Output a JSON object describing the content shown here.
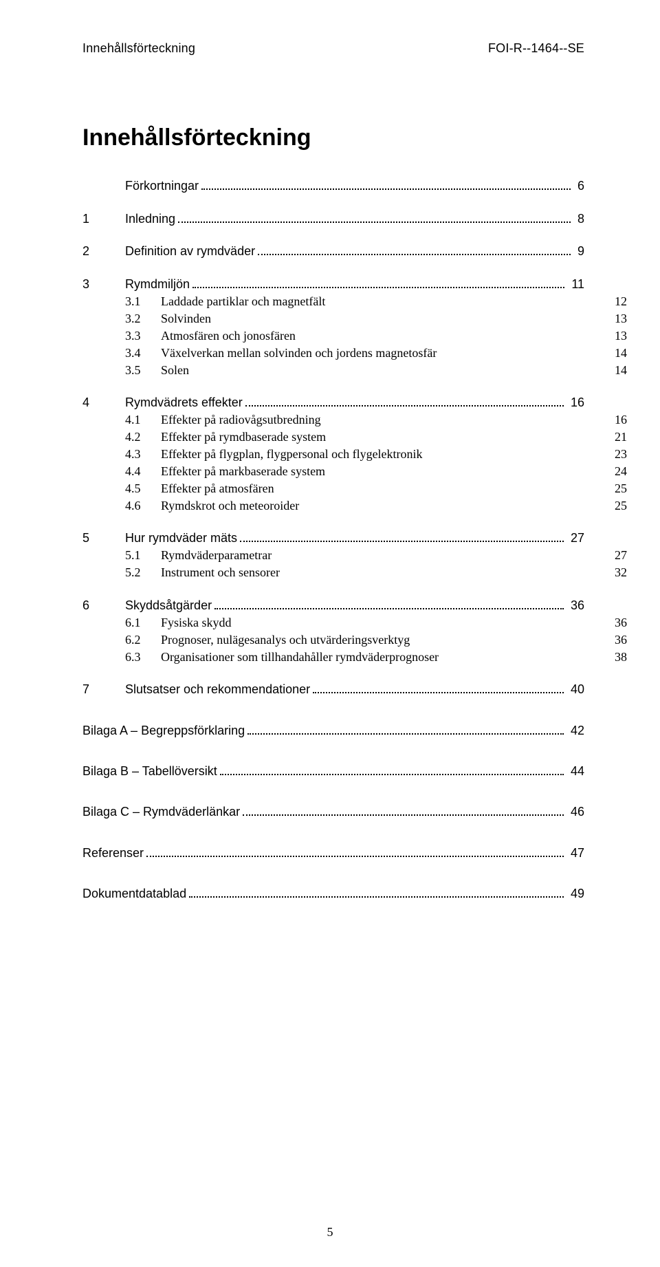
{
  "header": {
    "left": "Innehållsförteckning",
    "right": "FOI-R--1464--SE"
  },
  "title": "Innehållsförteckning",
  "page_number": "5",
  "toc": [
    {
      "type": "section",
      "num": "",
      "label": "Förkortningar",
      "page": "6",
      "dots": true
    },
    {
      "type": "section",
      "num": "1",
      "label": "Inledning",
      "page": "8",
      "dots": true
    },
    {
      "type": "section",
      "num": "2",
      "label": "Definition av rymdväder",
      "page": "9",
      "dots": true
    },
    {
      "type": "section",
      "num": "3",
      "label": "Rymdmiljön",
      "page": "11",
      "dots": true
    },
    {
      "type": "subsection",
      "num": "3.1",
      "label": "Laddade partiklar och magnetfält",
      "page": "12"
    },
    {
      "type": "subsection",
      "num": "3.2",
      "label": "Solvinden",
      "page": "13"
    },
    {
      "type": "subsection",
      "num": "3.3",
      "label": "Atmosfären och jonosfären",
      "page": "13"
    },
    {
      "type": "subsection",
      "num": "3.4",
      "label": "Växelverkan mellan solvinden och jordens magnetosfär",
      "page": "14"
    },
    {
      "type": "subsection",
      "num": "3.5",
      "label": "Solen",
      "page": "14"
    },
    {
      "type": "section",
      "num": "4",
      "label": "Rymdvädrets effekter",
      "page": "16",
      "dots": true
    },
    {
      "type": "subsection",
      "num": "4.1",
      "label": "Effekter på radiovågsutbredning",
      "page": "16"
    },
    {
      "type": "subsection",
      "num": "4.2",
      "label": "Effekter på rymdbaserade system",
      "page": "21"
    },
    {
      "type": "subsection",
      "num": "4.3",
      "label": "Effekter på flygplan, flygpersonal och flygelektronik",
      "page": "23"
    },
    {
      "type": "subsection",
      "num": "4.4",
      "label": "Effekter på markbaserade system",
      "page": "24"
    },
    {
      "type": "subsection",
      "num": "4.5",
      "label": "Effekter på atmosfären",
      "page": "25"
    },
    {
      "type": "subsection",
      "num": "4.6",
      "label": "Rymdskrot och meteoroider",
      "page": "25"
    },
    {
      "type": "section",
      "num": "5",
      "label": "Hur rymdväder mäts",
      "page": "27",
      "dots": true
    },
    {
      "type": "subsection",
      "num": "5.1",
      "label": "Rymdväderparametrar",
      "page": "27"
    },
    {
      "type": "subsection",
      "num": "5.2",
      "label": "Instrument och sensorer",
      "page": "32"
    },
    {
      "type": "section",
      "num": "6",
      "label": "Skyddsåtgärder",
      "page": "36",
      "dots": true
    },
    {
      "type": "subsection",
      "num": "6.1",
      "label": "Fysiska skydd",
      "page": "36"
    },
    {
      "type": "subsection",
      "num": "6.2",
      "label": "Prognoser, nulägesanalys och utvärderingsverktyg",
      "page": "36"
    },
    {
      "type": "subsection",
      "num": "6.3",
      "label": "Organisationer som tillhandahåller rymdväderprognoser",
      "page": "38"
    },
    {
      "type": "section",
      "num": "7",
      "label": "Slutsatser och rekommendationer",
      "page": "40",
      "dots": true
    },
    {
      "type": "appendix",
      "label": "Bilaga A – Begreppsförklaring",
      "page": "42",
      "dots": true
    },
    {
      "type": "appendix",
      "label": "Bilaga B – Tabellöversikt",
      "page": "44",
      "dots": true
    },
    {
      "type": "appendix",
      "label": "Bilaga C – Rymdväderlänkar",
      "page": "46",
      "dots": true
    },
    {
      "type": "appendix",
      "label": "Referenser",
      "page": "47",
      "dots": true
    },
    {
      "type": "appendix",
      "label": "Dokumentdatablad",
      "page": "49",
      "dots": true
    }
  ]
}
